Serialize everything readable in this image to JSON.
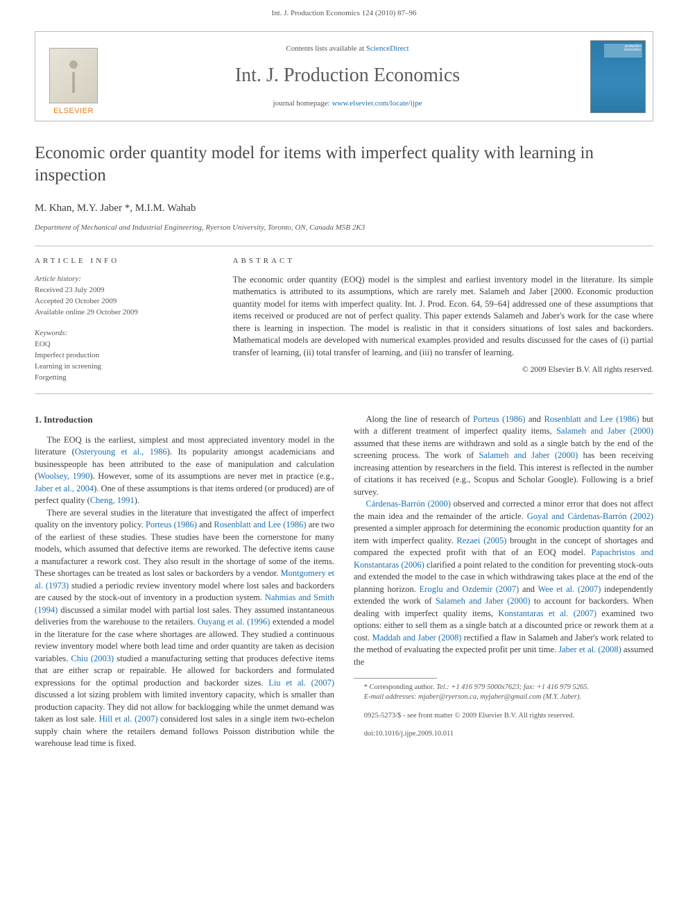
{
  "header": {
    "running_head": "Int. J. Production Economics 124 (2010) 87–96"
  },
  "masthead": {
    "publisher": "ELSEVIER",
    "contents_prefix": "Contents lists available at ",
    "contents_link": "ScienceDirect",
    "journal_name": "Int. J. Production Economics",
    "homepage_prefix": "journal homepage: ",
    "homepage_link": "www.elsevier.com/locate/ijpe",
    "cover_title": "production economics"
  },
  "article": {
    "title": "Economic order quantity model for items with imperfect quality with learning in inspection",
    "authors": "M. Khan, M.Y. Jaber *, M.I.M. Wahab",
    "affiliation": "Department of Mechanical and Industrial Engineering, Ryerson University, Toronto, ON, Canada M5B 2K3"
  },
  "info": {
    "section_label": "ARTICLE INFO",
    "history_label": "Article history:",
    "received": "Received 23 July 2009",
    "accepted": "Accepted 20 October 2009",
    "online": "Available online 29 October 2009",
    "keywords_label": "Keywords:",
    "kw1": "EOQ",
    "kw2": "Imperfect production",
    "kw3": "Learning in screening",
    "kw4": "Forgetting"
  },
  "abstract": {
    "section_label": "ABSTRACT",
    "text": "The economic order quantity (EOQ) model is the simplest and earliest inventory model in the literature. Its simple mathematics is attributed to its assumptions, which are rarely met. Salameh and Jaber [2000. Economic production quantity model for items with imperfect quality. Int. J. Prod. Econ. 64, 59–64] addressed one of these assumptions that items received or produced are not of perfect quality. This paper extends Salameh and Jaber's work for the case where there is learning in inspection. The model is realistic in that it considers situations of lost sales and backorders. Mathematical models are developed with numerical examples provided and results discussed for the cases of (i) partial transfer of learning, (ii) total transfer of learning, and (iii) no transfer of learning.",
    "copyright": "© 2009 Elsevier B.V. All rights reserved."
  },
  "body": {
    "heading": "1. Introduction",
    "p1a": "The EOQ is the earliest, simplest and most appreciated inventory model in the literature (",
    "p1_c1": "Osteryoung et al., 1986",
    "p1b": "). Its popularity amongst academicians and businesspeople has been attributed to the ease of manipulation and calculation (",
    "p1_c2": "Woolsey, 1990",
    "p1c": "). However, some of its assumptions are never met in practice (e.g., ",
    "p1_c3": "Jaber et al., 2004",
    "p1d": "). One of these assumptions is that items ordered (or produced) are of perfect quality (",
    "p1_c4": "Cheng, 1991",
    "p1e": ").",
    "p2a": "There are several studies in the literature that investigated the affect of imperfect quality on the inventory policy. ",
    "p2_c1": "Porteus (1986)",
    "p2b": " and ",
    "p2_c2": "Rosenblatt and Lee (1986)",
    "p2c": " are two of the earliest of these studies. These studies have been the cornerstone for many models, which assumed that defective items are reworked. The defective items cause a manufacturer a rework cost. They also result in the shortage of some of the items. These shortages can be treated as lost sales or backorders by a vendor. ",
    "p2_c3": "Montgomery et al. (1973)",
    "p2d": " studied a periodic review inventory model where lost sales and backorders are caused by the stock-out of inventory in a production system. ",
    "p2_c4": "Nahmias and Smith (1994)",
    "p2e": " discussed a similar model with partial lost sales. They assumed instantaneous deliveries from the warehouse to the retailers. ",
    "p2_c5": "Ouyang et al. (1996)",
    "p2f": " extended a model in the literature for the case where shortages are allowed. They studied a continuous review inventory model where both lead time and order quantity are taken as decision variables. ",
    "p2_c6": "Chiu (2003)",
    "p2g": " studied a manufacturing setting that produces defective items that are either scrap or repairable. He allowed for backorders and formulated expressions",
    "p3a": "for the optimal production and backorder sizes. ",
    "p3_c1": "Liu et al. (2007)",
    "p3b": " discussed a lot sizing problem with limited inventory capacity, which is smaller than production capacity. They did not allow for backlogging while the unmet demand was taken as lost sale. ",
    "p3_c2": "Hill et al. (2007)",
    "p3c": " considered lost sales in a single item two-echelon supply chain where the retailers demand follows Poisson distribution while the warehouse lead time is fixed.",
    "p4a": "Along the line of research of ",
    "p4_c1": "Porteus (1986)",
    "p4b": " and ",
    "p4_c2": "Rosenblatt and Lee (1986)",
    "p4c": " but with a different treatment of imperfect quality items, ",
    "p4_c3": "Salameh and Jaber (2000)",
    "p4d": " assumed that these items are withdrawn and sold as a single batch by the end of the screening process. The work of ",
    "p4_c4": "Salameh and Jaber (2000)",
    "p4e": " has been receiving increasing attention by researchers in the field. This interest is reflected in the number of citations it has received (e.g., Scopus and Scholar Google). Following is a brief survey.",
    "p5a": "",
    "p5_c1": "Cárdenas-Barrón (2000)",
    "p5b": " observed and corrected a minor error that does not affect the main idea and the remainder of the article. ",
    "p5_c2": "Goyal and Cárdenas-Barrón (2002)",
    "p5c": " presented a simpler approach for determining the economic production quantity for an item with imperfect quality. ",
    "p5_c3": "Rezaei (2005)",
    "p5d": " brought in the concept of shortages and compared the expected profit with that of an EOQ model. ",
    "p5_c4": "Papachristos and Konstantaras (2006)",
    "p5e": " clarified a point related to the condition for preventing stock-outs and extended the model to the case in which withdrawing takes place at the end of the planning horizon. ",
    "p5_c5": "Eroglu and Ozdemir (2007)",
    "p5f": " and ",
    "p5_c6": "Wee et al. (2007)",
    "p5g": " independently extended the work of ",
    "p5_c7": "Salameh and Jaber (2000)",
    "p5h": " to account for backorders. When dealing with imperfect quality items, ",
    "p5_c8": "Konstantaras et al. (2007)",
    "p5i": " examined two options: either to sell them as a single batch at a discounted price or rework them at a cost. ",
    "p5_c9": "Maddah and Jaber (2008)",
    "p5j": " rectified a flaw in Salameh and Jaber's work related to the method of evaluating the expected profit per unit time. ",
    "p5_c10": "Jaber et al. (2008)",
    "p5k": " assumed the"
  },
  "footnotes": {
    "corr_label": "* Corresponding author. ",
    "corr_text": "Tel.: +1 416 979 5000x7623; fax: +1 416 979 5265.",
    "email_label": "E-mail addresses: ",
    "email_text": "mjaber@ryerson.ca, myjaber@gmail.com (M.Y. Jaber)."
  },
  "footer": {
    "line1": "0925-5273/$ - see front matter © 2009 Elsevier B.V. All rights reserved.",
    "line2": "doi:10.1016/j.ijpe.2009.10.011"
  },
  "colors": {
    "link": "#1a6fb0",
    "text": "#3a3a3a",
    "muted": "#555555",
    "rule": "#bdbdbd",
    "elsevier_orange": "#e67817",
    "cover_blue": "#2a7aa8"
  }
}
